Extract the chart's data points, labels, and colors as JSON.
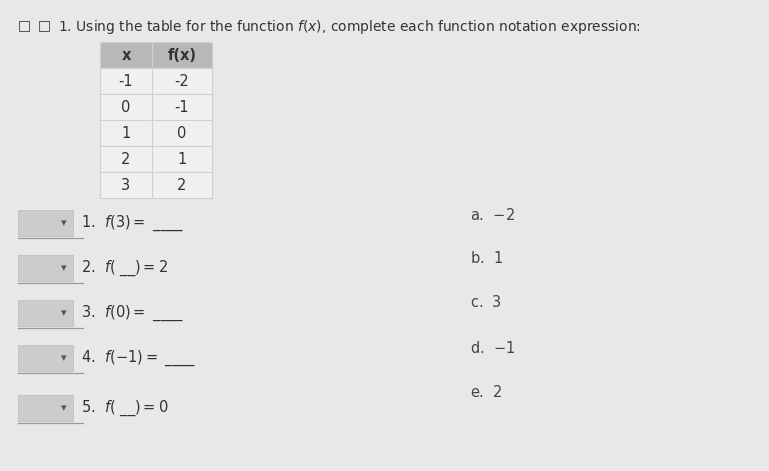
{
  "bg_color": "#e8e8e8",
  "title_text": "1. Using the table for the function $f(x)$, complete each function notation expression:",
  "table_headers": [
    "x",
    "f(x)"
  ],
  "table_rows": [
    [
      "-1",
      "-2"
    ],
    [
      "0",
      "-1"
    ],
    [
      "1",
      "0"
    ],
    [
      "2",
      "1"
    ],
    [
      "3",
      "2"
    ]
  ],
  "table_header_bg": "#b8b8b8",
  "table_cell_bg": "#f0f0f0",
  "table_border_color": "#d0d0d0",
  "q_box_color": "#cccccc",
  "q_line_color": "#999999",
  "text_color": "#333333",
  "answer_color": "#444444",
  "q_texts": [
    "1.  $f(3) =$ ____",
    "2.  $f($ __$) = 2$",
    "3.  $f(0) =$ ____",
    "4.  $f(-1) =$ ____",
    "5.  $f($ __$) = 0$"
  ],
  "a_texts": [
    "a.  $-2$",
    "b.  $1$",
    "c.  $3$",
    "d.  $-1$",
    "e.  $2$"
  ],
  "font_size": 10.5,
  "title_font_size": 10
}
